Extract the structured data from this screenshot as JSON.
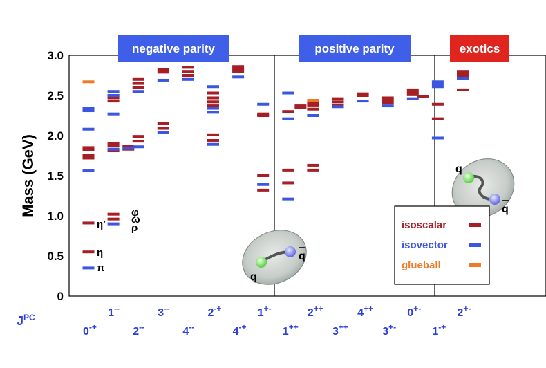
{
  "colors": {
    "isoscalar": "#a61f24",
    "isovector": "#3b57e0",
    "glueball": "#f07a27",
    "band_blue": "#3f5fe8",
    "band_red": "#e0251f",
    "jpc": "#2b3fdb"
  },
  "chart_data": {
    "type": "level-diagram",
    "ylabel": "Mass (GeV)",
    "ylim": [
      0,
      3.0
    ],
    "yticks": [
      "0",
      "0.5",
      "1.0",
      "1.5",
      "2.0",
      "2.5",
      "3.0"
    ],
    "jpc_axis_label": "JPC",
    "bands": [
      {
        "label": "negative parity",
        "color": "blue"
      },
      {
        "label": "positive parity",
        "color": "blue"
      },
      {
        "label": "exotics",
        "color": "red"
      }
    ],
    "columns": [
      {
        "jpc": "0-+",
        "row": "lower"
      },
      {
        "jpc": "1--",
        "row": "upper"
      },
      {
        "jpc": "2--",
        "row": "lower"
      },
      {
        "jpc": "3--",
        "row": "upper"
      },
      {
        "jpc": "4--",
        "row": "lower"
      },
      {
        "jpc": "2-+",
        "row": "upper"
      },
      {
        "jpc": "4-+",
        "row": "lower"
      },
      {
        "jpc": "1+-",
        "row": "upper"
      },
      {
        "jpc": "1++",
        "row": "lower"
      },
      {
        "jpc": "2++",
        "row": "upper"
      },
      {
        "jpc": "3++",
        "row": "lower"
      },
      {
        "jpc": "4++",
        "row": "upper"
      },
      {
        "jpc": "3+-",
        "row": "lower"
      },
      {
        "jpc": "0+-",
        "row": "upper"
      },
      {
        "jpc": "1-+",
        "row": "lower"
      },
      {
        "jpc": "2+-",
        "row": "upper"
      }
    ],
    "known_mesons": [
      {
        "name": "π",
        "column": 0,
        "mass": 0.14,
        "type": "isovector"
      },
      {
        "name": "η",
        "column": 0,
        "mass": 0.55,
        "type": "isoscalar"
      },
      {
        "name": "η′",
        "column": 0,
        "mass": 0.91,
        "type": "isoscalar"
      },
      {
        "name": "ρ",
        "column": 1,
        "mass": 0.9,
        "type": "isovector"
      },
      {
        "name": "ω",
        "column": 1,
        "mass": 0.96,
        "type": "isoscalar"
      },
      {
        "name": "φ",
        "column": 1,
        "mass": 1.02,
        "type": "isoscalar"
      }
    ],
    "series": [
      {
        "name": "isoscalar",
        "points": [
          {
            "col": 0,
            "mass": 1.72
          },
          {
            "col": 0,
            "mass": 1.75
          },
          {
            "col": 0,
            "mass": 1.82
          },
          {
            "col": 0,
            "mass": 1.85
          },
          {
            "col": 1,
            "mass": 1.81
          },
          {
            "col": 1,
            "mass": 1.87
          },
          {
            "col": 1,
            "mass": 1.9
          },
          {
            "col": 1,
            "mass": 2.43
          },
          {
            "col": 1,
            "mass": 2.47
          },
          {
            "col": 1,
            "mass": 2.5
          },
          {
            "col": 1.6,
            "mass": 1.83
          },
          {
            "col": 1.6,
            "mass": 1.87
          },
          {
            "col": 2,
            "mass": 1.93
          },
          {
            "col": 2,
            "mass": 1.99
          },
          {
            "col": 2,
            "mass": 2.6
          },
          {
            "col": 2,
            "mass": 2.65
          },
          {
            "col": 2,
            "mass": 2.7
          },
          {
            "col": 3,
            "mass": 2.09
          },
          {
            "col": 3,
            "mass": 2.15
          },
          {
            "col": 3,
            "mass": 2.79
          },
          {
            "col": 3,
            "mass": 2.82
          },
          {
            "col": 4,
            "mass": 2.75
          },
          {
            "col": 4,
            "mass": 2.8
          },
          {
            "col": 4,
            "mass": 2.85
          },
          {
            "col": 5,
            "mass": 1.94
          },
          {
            "col": 5,
            "mass": 2.01
          },
          {
            "col": 5,
            "mass": 2.37
          },
          {
            "col": 5,
            "mass": 2.42
          },
          {
            "col": 5,
            "mass": 2.47
          },
          {
            "col": 5,
            "mass": 2.53
          },
          {
            "col": 6,
            "mass": 2.8
          },
          {
            "col": 6,
            "mass": 2.83
          },
          {
            "col": 6,
            "mass": 2.86
          },
          {
            "col": 7,
            "mass": 2.25
          },
          {
            "col": 7,
            "mass": 2.27
          },
          {
            "col": 7,
            "mass": 1.5
          },
          {
            "col": 7,
            "mass": 1.32
          },
          {
            "col": 8,
            "mass": 2.3
          },
          {
            "col": 8,
            "mass": 1.57
          },
          {
            "col": 8,
            "mass": 1.41
          },
          {
            "col": 8.5,
            "mass": 2.35
          },
          {
            "col": 8.5,
            "mass": 2.37
          },
          {
            "col": 9,
            "mass": 2.33
          },
          {
            "col": 9,
            "mass": 2.38
          },
          {
            "col": 9,
            "mass": 2.41
          },
          {
            "col": 9,
            "mass": 1.57
          },
          {
            "col": 9,
            "mass": 1.63
          },
          {
            "col": 10,
            "mass": 2.38
          },
          {
            "col": 10,
            "mass": 2.42
          },
          {
            "col": 10,
            "mass": 2.46
          },
          {
            "col": 11,
            "mass": 2.5
          },
          {
            "col": 11,
            "mass": 2.52
          },
          {
            "col": 12,
            "mass": 2.41
          },
          {
            "col": 12,
            "mass": 2.44
          },
          {
            "col": 12,
            "mass": 2.47
          },
          {
            "col": 13,
            "mass": 2.51
          },
          {
            "col": 13,
            "mass": 2.54
          },
          {
            "col": 13,
            "mass": 2.57
          },
          {
            "col": 13.4,
            "mass": 2.49
          },
          {
            "col": 14,
            "mass": 2.39
          },
          {
            "col": 14,
            "mass": 2.21
          },
          {
            "col": 15,
            "mass": 2.57
          },
          {
            "col": 15,
            "mass": 2.73
          },
          {
            "col": 15,
            "mass": 2.76
          },
          {
            "col": 15,
            "mass": 2.8
          }
        ]
      },
      {
        "name": "isovector",
        "points": [
          {
            "col": 0,
            "mass": 1.56
          },
          {
            "col": 0,
            "mass": 2.08
          },
          {
            "col": 0,
            "mass": 2.31
          },
          {
            "col": 0,
            "mass": 2.34
          },
          {
            "col": 1,
            "mass": 1.83
          },
          {
            "col": 1,
            "mass": 2.27
          },
          {
            "col": 1,
            "mass": 2.5
          },
          {
            "col": 1,
            "mass": 2.55
          },
          {
            "col": 1.6,
            "mass": 1.84
          },
          {
            "col": 2,
            "mass": 1.86
          },
          {
            "col": 2,
            "mass": 2.55
          },
          {
            "col": 3,
            "mass": 2.04
          },
          {
            "col": 3,
            "mass": 2.69
          },
          {
            "col": 4,
            "mass": 2.7
          },
          {
            "col": 5,
            "mass": 1.89
          },
          {
            "col": 5,
            "mass": 2.29
          },
          {
            "col": 5,
            "mass": 2.34
          },
          {
            "col": 5,
            "mass": 2.61
          },
          {
            "col": 6,
            "mass": 2.73
          },
          {
            "col": 7,
            "mass": 2.39
          },
          {
            "col": 7,
            "mass": 1.39
          },
          {
            "col": 8,
            "mass": 2.21
          },
          {
            "col": 8,
            "mass": 2.53
          },
          {
            "col": 8,
            "mass": 1.21
          },
          {
            "col": 9,
            "mass": 2.25
          },
          {
            "col": 10,
            "mass": 2.36
          },
          {
            "col": 11,
            "mass": 2.43
          },
          {
            "col": 12,
            "mass": 2.37
          },
          {
            "col": 13,
            "mass": 2.46
          },
          {
            "col": 14,
            "mass": 1.97
          },
          {
            "col": 14,
            "mass": 2.61
          },
          {
            "col": 14,
            "mass": 2.64
          },
          {
            "col": 14,
            "mass": 2.67
          },
          {
            "col": 15,
            "mass": 2.71
          }
        ]
      },
      {
        "name": "glueball",
        "points": [
          {
            "col": 0,
            "mass": 2.67
          },
          {
            "col": 9,
            "mass": 2.44
          }
        ]
      }
    ],
    "legend": {
      "placement": "bottom-right",
      "entries": [
        "isoscalar",
        "isovector",
        "glueball"
      ]
    },
    "quark_pair_labels": [
      "q",
      "q"
    ],
    "grid": false
  }
}
